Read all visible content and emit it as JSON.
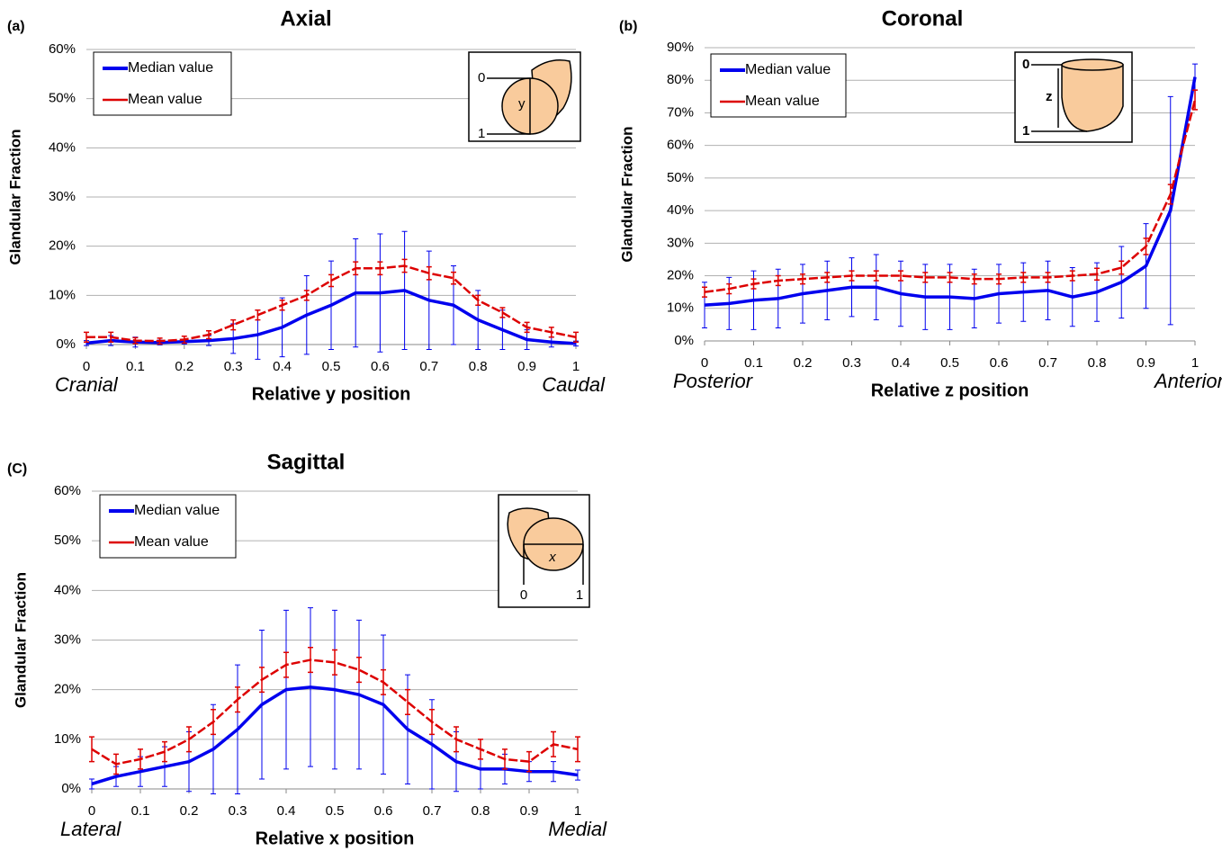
{
  "chart_data": [
    {
      "type": "line",
      "panel_label": "(a)",
      "title": "Axial",
      "xlabel": "Relative y position",
      "ylabel": "Glandular Fraction",
      "annotations": [
        "Cranial",
        "Caudal"
      ],
      "diagram_labels": [
        "0",
        "1",
        "y"
      ],
      "legend": "upper left",
      "grid": true,
      "x": [
        0,
        0.05,
        0.1,
        0.15,
        0.2,
        0.25,
        0.3,
        0.35,
        0.4,
        0.45,
        0.5,
        0.55,
        0.6,
        0.65,
        0.7,
        0.75,
        0.8,
        0.85,
        0.9,
        0.95,
        1
      ],
      "series": [
        {
          "name": "Median value",
          "color": "#0000ee",
          "values": [
            0.3,
            0.8,
            0.5,
            0.4,
            0.6,
            0.8,
            1.2,
            2,
            3.5,
            6,
            8,
            10.5,
            10.5,
            11,
            9,
            8,
            5,
            3,
            1,
            0.5,
            0.2
          ],
          "errors": [
            0.5,
            1,
            1,
            0.5,
            0.5,
            1,
            3,
            5,
            6,
            8,
            9,
            11,
            12,
            12,
            10,
            8,
            6,
            4,
            2,
            1,
            0.5
          ]
        },
        {
          "name": "Mean value",
          "color": "#dd0000",
          "values": [
            1.5,
            1.5,
            0.8,
            0.7,
            1,
            2,
            4,
            6,
            8,
            10,
            13,
            15.5,
            15.5,
            16,
            14.5,
            13.5,
            9,
            6.5,
            3.5,
            2.5,
            1.5
          ],
          "errors": [
            1,
            1,
            0.6,
            0.6,
            0.7,
            0.8,
            1,
            1,
            1,
            1,
            1.2,
            1.3,
            1.3,
            1.3,
            1.3,
            1.2,
            1,
            1,
            1,
            1,
            1
          ]
        }
      ],
      "xlim": [
        0,
        1
      ],
      "xticks": [
        0,
        0.1,
        0.2,
        0.3,
        0.4,
        0.5,
        0.6,
        0.7,
        0.8,
        0.9,
        1
      ],
      "ylim": [
        0,
        60
      ],
      "yticks": [
        {
          "value": 0,
          "label": "0%"
        },
        {
          "value": 10,
          "label": "10%"
        },
        {
          "value": 20,
          "label": "20%"
        },
        {
          "value": 30,
          "label": "30%"
        },
        {
          "value": 40,
          "label": "40%"
        },
        {
          "value": 50,
          "label": "50%"
        },
        {
          "value": 60,
          "label": "60%"
        }
      ]
    },
    {
      "type": "line",
      "panel_label": "(b)",
      "title": "Coronal",
      "xlabel": "Relative z position",
      "ylabel": "Glandular Fraction",
      "annotations": [
        "Posterior",
        "Anterior"
      ],
      "diagram_labels": [
        "0",
        "1",
        "z"
      ],
      "legend": "upper left",
      "grid": true,
      "x": [
        0,
        0.05,
        0.1,
        0.15,
        0.2,
        0.25,
        0.3,
        0.35,
        0.4,
        0.45,
        0.5,
        0.55,
        0.6,
        0.65,
        0.7,
        0.75,
        0.8,
        0.85,
        0.9,
        0.95,
        1
      ],
      "series": [
        {
          "name": "Median value",
          "color": "#0000ee",
          "values": [
            11,
            11.5,
            12.5,
            13,
            14.5,
            15.5,
            16.5,
            16.5,
            14.5,
            13.5,
            13.5,
            13,
            14.5,
            15,
            15.5,
            13.5,
            15,
            18,
            23,
            40,
            81
          ],
          "errors": [
            7,
            8,
            9,
            9,
            9,
            9,
            9,
            10,
            10,
            10,
            10,
            9,
            9,
            9,
            9,
            9,
            9,
            11,
            13,
            35,
            4
          ]
        },
        {
          "name": "Mean value",
          "color": "#dd0000",
          "values": [
            15,
            16,
            17.5,
            18.5,
            19,
            19.5,
            20,
            20,
            20,
            19.5,
            19.5,
            19,
            19,
            19.5,
            19.5,
            20,
            20.5,
            22.5,
            29,
            45,
            74
          ],
          "errors": [
            1.5,
            1.5,
            1.5,
            1.5,
            1.5,
            1.5,
            1.5,
            1.5,
            1.5,
            1.5,
            1.5,
            1.5,
            1.5,
            1.5,
            1.5,
            1.5,
            1.8,
            2,
            2.5,
            3,
            3
          ]
        }
      ],
      "xlim": [
        0,
        1
      ],
      "xticks": [
        0,
        0.1,
        0.2,
        0.3,
        0.4,
        0.5,
        0.6,
        0.7,
        0.8,
        0.9,
        1
      ],
      "ylim": [
        0,
        90
      ],
      "yticks": [
        {
          "value": 0,
          "label": "0%"
        },
        {
          "value": 10,
          "label": "10%"
        },
        {
          "value": 20,
          "label": "20%"
        },
        {
          "value": 30,
          "label": "30%"
        },
        {
          "value": 40,
          "label": "40%"
        },
        {
          "value": 50,
          "label": "50%"
        },
        {
          "value": 60,
          "label": "60%"
        },
        {
          "value": 70,
          "label": "70%"
        },
        {
          "value": 80,
          "label": "80%"
        },
        {
          "value": 90,
          "label": "90%"
        }
      ]
    },
    {
      "type": "line",
      "panel_label": "(C)",
      "title": "Sagittal",
      "xlabel": "Relative x position",
      "ylabel": "Glandular Fraction",
      "annotations": [
        "Lateral",
        "Medial"
      ],
      "diagram_labels": [
        "0",
        "1",
        "x"
      ],
      "legend": "upper left",
      "grid": true,
      "x": [
        0,
        0.05,
        0.1,
        0.15,
        0.2,
        0.25,
        0.3,
        0.35,
        0.4,
        0.45,
        0.5,
        0.55,
        0.6,
        0.65,
        0.7,
        0.75,
        0.8,
        0.85,
        0.9,
        0.95,
        1
      ],
      "series": [
        {
          "name": "Median value",
          "color": "#0000ee",
          "values": [
            1,
            2.5,
            3.5,
            4.5,
            5.5,
            8,
            12,
            17,
            20,
            20.5,
            20,
            19,
            17,
            12,
            9,
            5.5,
            4,
            4,
            3.5,
            3.5,
            2.8
          ],
          "errors": [
            1,
            2,
            3,
            4,
            6,
            9,
            13,
            15,
            16,
            16,
            16,
            15,
            14,
            11,
            9,
            6,
            4,
            3,
            2,
            2,
            1
          ]
        },
        {
          "name": "Mean value",
          "color": "#dd0000",
          "values": [
            8,
            5,
            6,
            7.5,
            10,
            13.5,
            18,
            22,
            25,
            26,
            25.5,
            24,
            21.5,
            17.5,
            13.5,
            10,
            8,
            6,
            5.5,
            9,
            8
          ],
          "errors": [
            2.5,
            2,
            2,
            2,
            2.5,
            2.5,
            2.5,
            2.5,
            2.5,
            2.5,
            2.5,
            2.5,
            2.5,
            2.5,
            2.5,
            2.5,
            2,
            2,
            2,
            2.5,
            2.5
          ]
        }
      ],
      "xlim": [
        0,
        1
      ],
      "xticks": [
        0,
        0.1,
        0.2,
        0.3,
        0.4,
        0.5,
        0.6,
        0.7,
        0.8,
        0.9,
        1
      ],
      "ylim": [
        0,
        60
      ],
      "yticks": [
        {
          "value": 0,
          "label": "0%"
        },
        {
          "value": 10,
          "label": "10%"
        },
        {
          "value": 20,
          "label": "20%"
        },
        {
          "value": 30,
          "label": "30%"
        },
        {
          "value": 40,
          "label": "40%"
        },
        {
          "value": 50,
          "label": "50%"
        },
        {
          "value": 60,
          "label": "60%"
        }
      ]
    }
  ]
}
